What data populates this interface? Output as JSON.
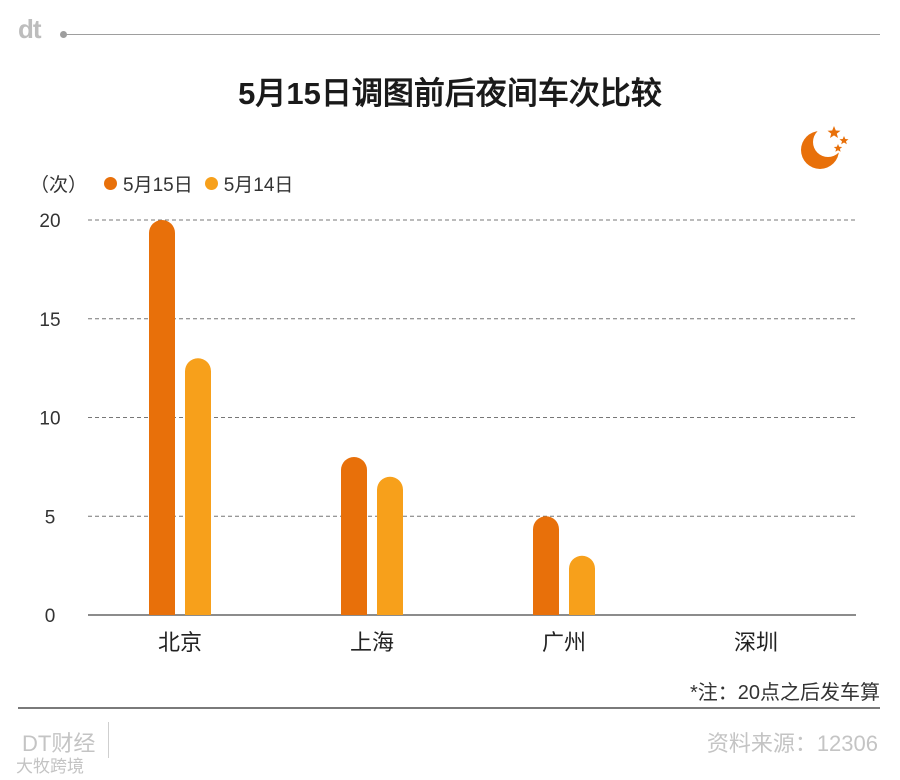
{
  "header": {
    "logo_text": "dt"
  },
  "chart_data": {
    "type": "bar",
    "title": "5月15日调图前后夜间车次比较",
    "unit_label": "（次）",
    "categories": [
      "北京",
      "上海",
      "广州",
      "深圳"
    ],
    "series": [
      {
        "name": "5月15日",
        "color": "#E8700A",
        "values": [
          20,
          8,
          5,
          0
        ]
      },
      {
        "name": "5月14日",
        "color": "#F7A01B",
        "values": [
          13,
          7,
          3,
          0
        ]
      }
    ],
    "ylim": [
      0,
      20
    ],
    "yticks": [
      "0",
      "5",
      "10",
      "15",
      "20"
    ],
    "grid": true,
    "legend_position": "top-left"
  },
  "note": "*注：20点之后发车算",
  "footer": {
    "brand": "DT财经",
    "source": "资料来源：12306",
    "watermark": "大牧跨境"
  },
  "icons": {
    "moon": "moon-with-stars-icon"
  }
}
